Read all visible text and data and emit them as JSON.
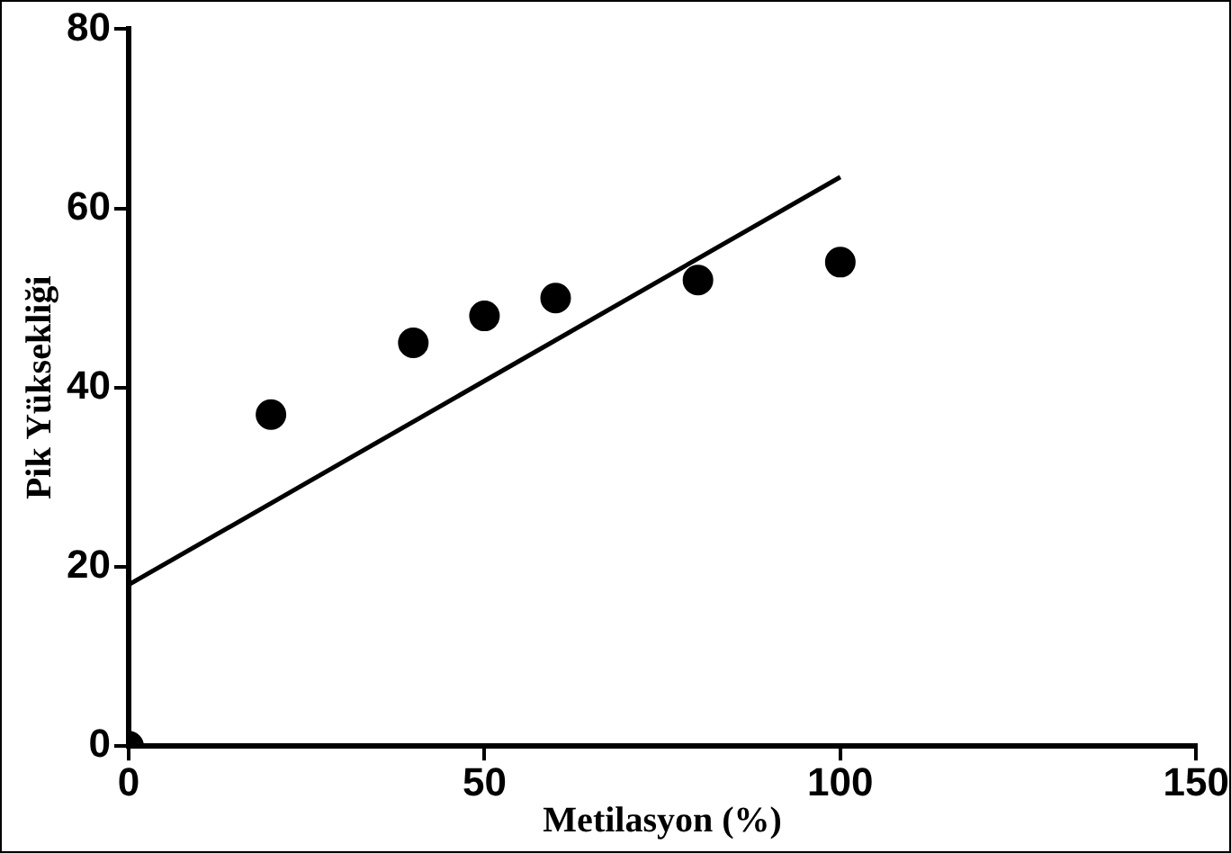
{
  "chart_data": {
    "type": "scatter",
    "xlabel": "Metilasyon (%)",
    "ylabel": "Pik Yüksekliği",
    "xlim": [
      0,
      150
    ],
    "xticks": [
      0,
      50,
      100,
      150
    ],
    "ylim": [
      0,
      80
    ],
    "yticks": [
      0,
      20,
      40,
      60,
      80
    ],
    "grid": false,
    "legend": false,
    "series": [
      {
        "color": "#000000",
        "marker": "circle",
        "x": [
          0,
          20,
          40,
          50,
          60,
          80,
          100
        ],
        "values": [
          0,
          37,
          45,
          48,
          50,
          52,
          54
        ]
      },
      {
        "type": "line",
        "color": "#000000",
        "marker": "none",
        "x": [
          0,
          100
        ],
        "values": [
          18,
          63.5
        ]
      }
    ]
  }
}
